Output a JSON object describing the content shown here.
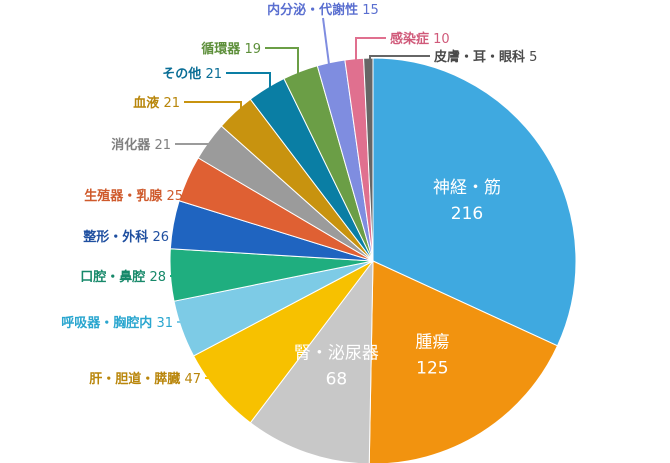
{
  "chart_data": {
    "type": "pie",
    "start_angle_deg": 0,
    "direction": "clockwise",
    "slices": [
      {
        "label": "神経・筋",
        "value": 216,
        "color": "#3fa9e0",
        "label_position": "inside"
      },
      {
        "label": "腫瘍",
        "value": 125,
        "color": "#f2930f",
        "label_position": "inside"
      },
      {
        "label": "腎・泌尿器",
        "value": 68,
        "color": "#c8c8c8",
        "label_position": "inside"
      },
      {
        "label": "肝・胆道・膵臓",
        "value": 47,
        "color": "#f7c100",
        "label_position": "outside",
        "label_color": "#b9860b"
      },
      {
        "label": "呼吸器・胸腔内",
        "value": 31,
        "color": "#7dcbe6",
        "label_position": "outside",
        "label_color": "#2aa6cf"
      },
      {
        "label": "口腔・鼻腔",
        "value": 28,
        "color": "#1fae7f",
        "label_position": "outside",
        "label_color": "#17896a"
      },
      {
        "label": "整形・外科",
        "value": 26,
        "color": "#1f64c0",
        "label_position": "outside",
        "label_color": "#1f4fa0"
      },
      {
        "label": "生殖器・乳腺",
        "value": 25,
        "color": "#df6033",
        "label_position": "outside",
        "label_color": "#cf5a2c"
      },
      {
        "label": "消化器",
        "value": 21,
        "color": "#9b9b9b",
        "label_position": "outside",
        "label_color": "#808080"
      },
      {
        "label": "血液",
        "value": 21,
        "color": "#c8930f",
        "label_position": "outside",
        "label_color": "#b8860b"
      },
      {
        "label": "その他",
        "value": 21,
        "color": "#0a7ea4",
        "label_position": "outside",
        "label_color": "#0a6e96"
      },
      {
        "label": "循環器",
        "value": 19,
        "color": "#6b9e46",
        "label_position": "outside",
        "label_color": "#5d8f3a"
      },
      {
        "label": "内分泌・代謝性",
        "value": 15,
        "color": "#7f8de0",
        "label_position": "outside",
        "label_color": "#5a6fd0"
      },
      {
        "label": "感染症",
        "value": 10,
        "color": "#e0708f",
        "label_position": "outside",
        "label_color": "#d05a7a"
      },
      {
        "label": "皮膚・耳・眼科",
        "value": 5,
        "color": "#666666",
        "label_position": "outside",
        "label_color": "#4a4a4a"
      }
    ]
  }
}
